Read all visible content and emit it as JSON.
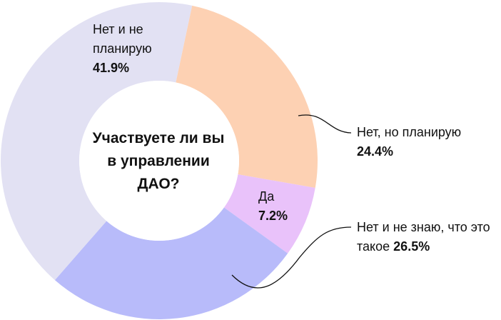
{
  "chart_data": {
    "type": "donut",
    "title": "Участвуете ли вы в управлении ДАО?",
    "categories": [
      "Нет, но планирую",
      "Да",
      "Нет и не знаю, что это такое",
      "Нет и не планирую"
    ],
    "values": [
      24.4,
      7.2,
      26.5,
      41.9
    ],
    "value_labels": [
      "24.4%",
      "7.2%",
      "26.5%",
      "41.9%"
    ],
    "colors": [
      "#fdd1b3",
      "#e9c2fa",
      "#b8bbfa",
      "#e2e1f3"
    ]
  }
}
